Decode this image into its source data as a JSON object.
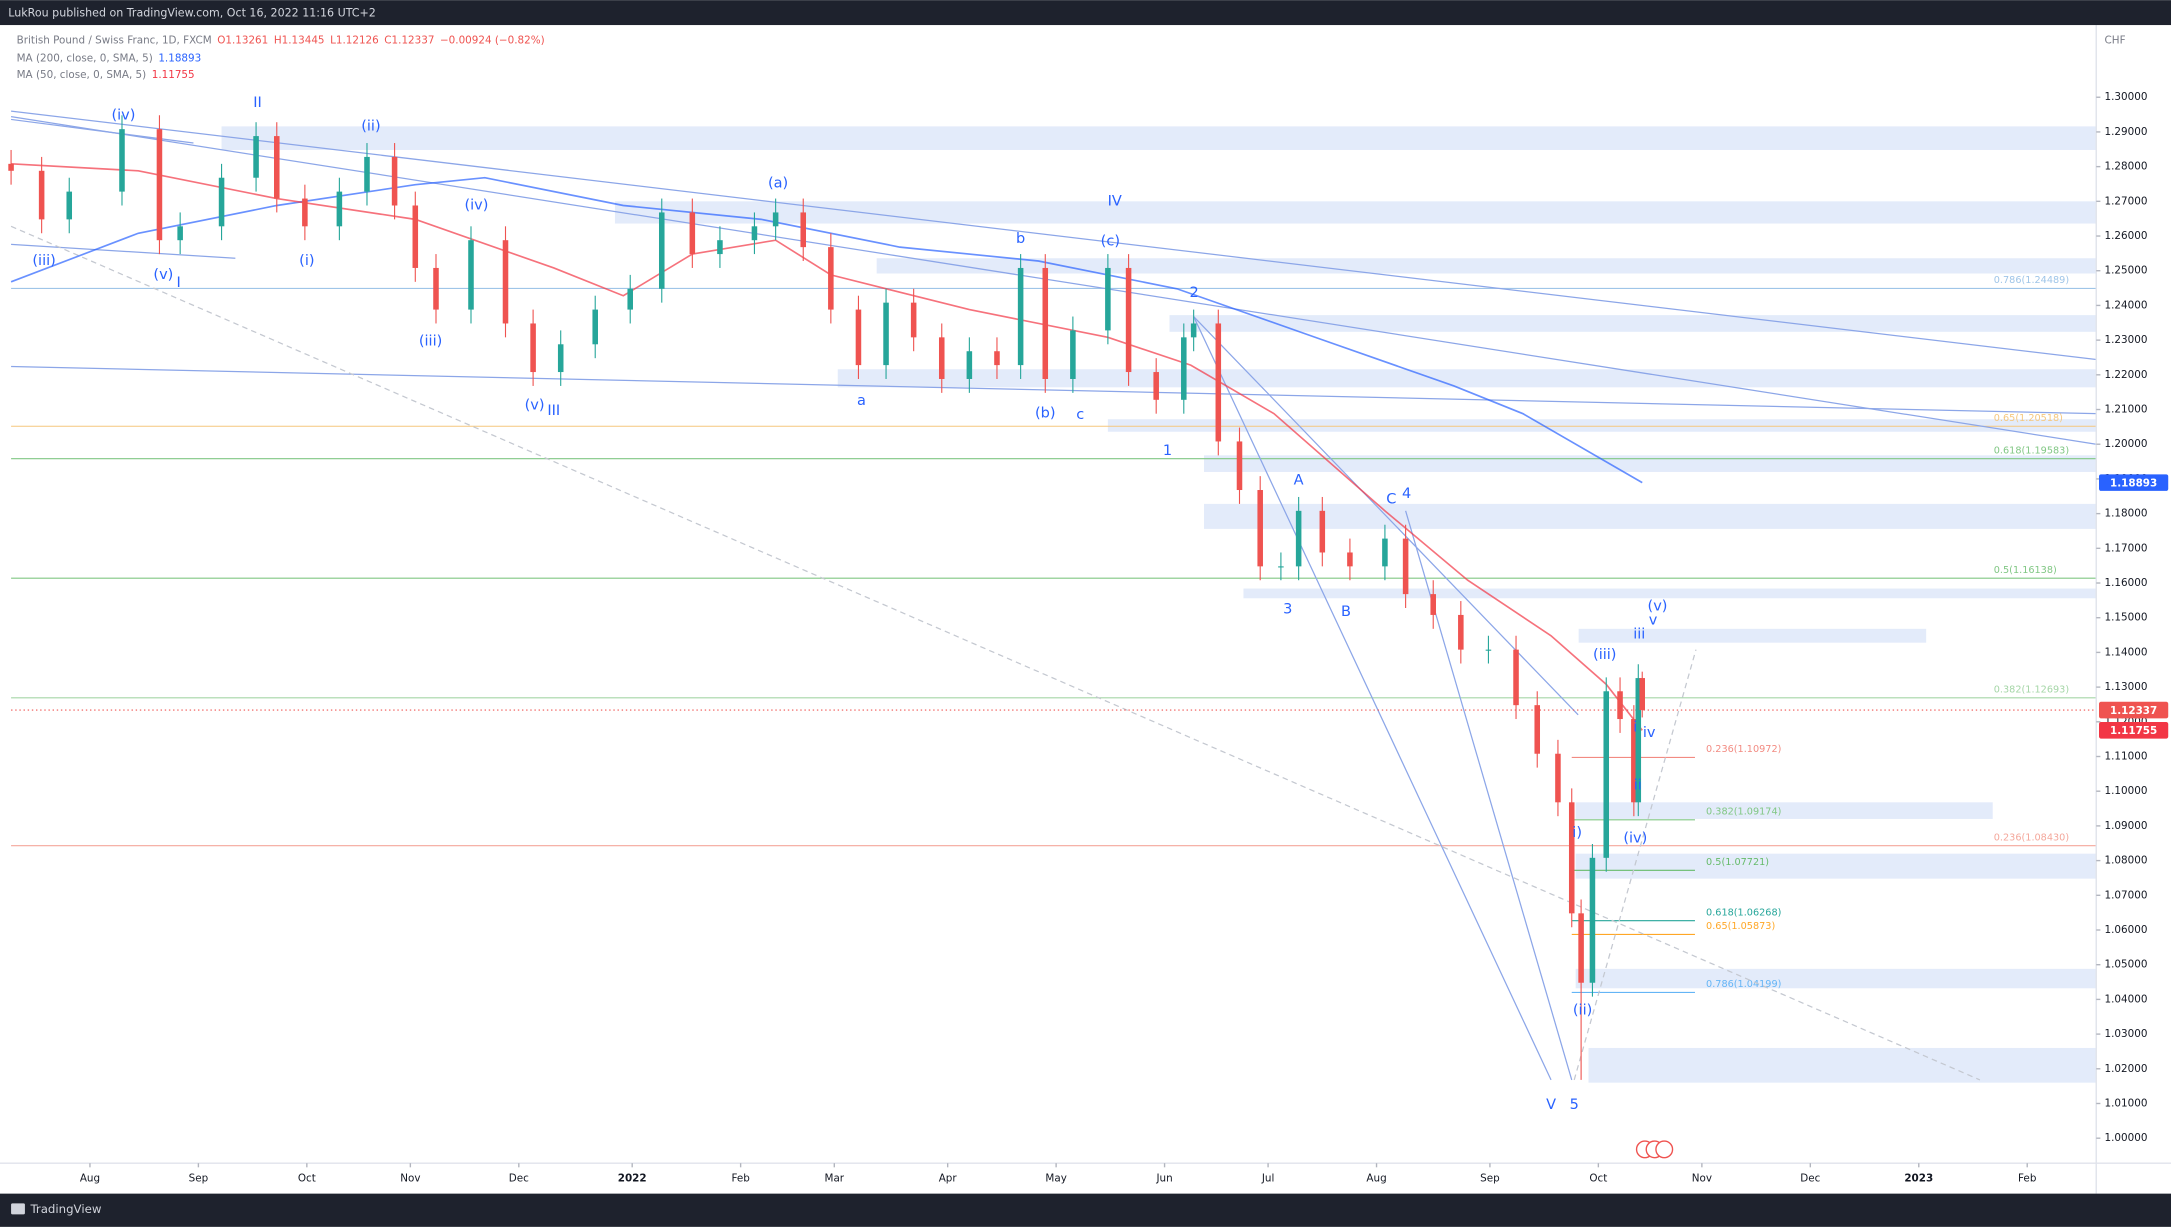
{
  "header": {
    "published": "LukRou published on TradingView.com, Oct 16, 2022 11:16 UTC+2"
  },
  "footer": {
    "brand": "TradingView"
  },
  "chart_data": {
    "type": "candlestick",
    "title": "British Pound / Swiss Franc, 1D, FXCM",
    "ohlc_legend": [
      "O1.13261",
      "H1.13445",
      "L1.12126",
      "C1.12337",
      "−0.00924 (−0.82%)"
    ],
    "currency": "CHF",
    "up_color": "#26a69a",
    "down_color": "#ef5350",
    "x": [
      0,
      6.2,
      11.8,
      22.5,
      30.1,
      34.3,
      42.7,
      49.7,
      53.9,
      59.6,
      66.6,
      72.2,
      77.8,
      82.0,
      86.2,
      93.3,
      100.3,
      105.9,
      111.5,
      118.5,
      125.6,
      132.0,
      138.2,
      143.8,
      150.8,
      155.1,
      160.7,
      166.3,
      171.9,
      177.5,
      183.1,
      188.8,
      194.4,
      200.0,
      204.8,
      209.8,
      215.4,
      222.5,
      226.7,
      232.3,
      237.9,
      239.9,
      244.9,
      249.2,
      253.4,
      257.6,
      261.2,
      266.0,
      271.6,
      278.7,
      282.9,
      288.5,
      294.1,
      299.7,
      305.3,
      309.6,
      313.8,
      316.6,
      318.5,
      320.8,
      323.6,
      326.4,
      329.2,
      330.1,
      330.9
    ],
    "open": [
      1.2808,
      1.2788,
      1.2648,
      1.2728,
      1.2908,
      1.2588,
      1.2628,
      1.2768,
      1.2888,
      1.2708,
      1.2628,
      1.2728,
      1.2828,
      1.2688,
      1.2508,
      1.2388,
      1.2588,
      1.2348,
      1.2208,
      1.2288,
      1.2388,
      1.2448,
      1.2668,
      1.2548,
      1.2588,
      1.2628,
      1.2668,
      1.2568,
      1.2388,
      1.2228,
      1.2408,
      1.2308,
      1.2188,
      1.2268,
      1.2228,
      1.2508,
      1.2188,
      1.2328,
      1.2508,
      1.2208,
      1.2128,
      1.2308,
      1.2348,
      1.2008,
      1.1868,
      1.1648,
      1.1648,
      1.1808,
      1.1688,
      1.1648,
      1.1728,
      1.1568,
      1.1508,
      1.1408,
      1.1408,
      1.1248,
      1.1108,
      1.0968,
      1.0648,
      1.0448,
      1.0808,
      1.1288,
      1.1208,
      1.0968,
      1.13261
    ],
    "high": [
      1.2848,
      1.2828,
      1.2768,
      1.2948,
      1.2948,
      1.2668,
      1.2808,
      1.2928,
      1.2928,
      1.2748,
      1.2768,
      1.2868,
      1.2868,
      1.2728,
      1.2548,
      1.2628,
      1.2628,
      1.2388,
      1.2328,
      1.2428,
      1.2488,
      1.2708,
      1.2708,
      1.2628,
      1.2668,
      1.2708,
      1.2708,
      1.2608,
      1.2428,
      1.2448,
      1.2448,
      1.2348,
      1.2308,
      1.2308,
      1.2548,
      1.2548,
      1.2368,
      1.2548,
      1.2548,
      1.2248,
      1.2348,
      1.2388,
      1.2388,
      1.2048,
      1.1908,
      1.1688,
      1.1848,
      1.1848,
      1.1728,
      1.1768,
      1.1768,
      1.1608,
      1.1548,
      1.1448,
      1.1448,
      1.1288,
      1.1148,
      1.1008,
      1.0688,
      1.0848,
      1.1328,
      1.1328,
      1.1248,
      1.1366,
      1.13445
    ],
    "low": [
      1.2748,
      1.2608,
      1.2608,
      1.2688,
      1.2548,
      1.2548,
      1.2588,
      1.2728,
      1.2668,
      1.2588,
      1.2588,
      1.2688,
      1.2648,
      1.2468,
      1.2348,
      1.2348,
      1.2308,
      1.2168,
      1.2168,
      1.2248,
      1.2348,
      1.2408,
      1.2508,
      1.2508,
      1.2548,
      1.2588,
      1.2528,
      1.2348,
      1.2188,
      1.2188,
      1.2268,
      1.2148,
      1.2148,
      1.2188,
      1.2188,
      1.2148,
      1.2148,
      1.2288,
      1.2168,
      1.2088,
      1.2088,
      1.2268,
      1.1968,
      1.1828,
      1.1608,
      1.1608,
      1.1608,
      1.1648,
      1.1608,
      1.1608,
      1.1528,
      1.1468,
      1.1368,
      1.1368,
      1.1208,
      1.1068,
      1.0928,
      1.0608,
      1.0168,
      1.0408,
      1.0768,
      1.1168,
      1.0928,
      1.0928,
      1.12126
    ],
    "close": [
      1.2788,
      1.2648,
      1.2728,
      1.2908,
      1.2588,
      1.2628,
      1.2768,
      1.2888,
      1.2708,
      1.2628,
      1.2728,
      1.2828,
      1.2688,
      1.2508,
      1.2388,
      1.2588,
      1.2348,
      1.2208,
      1.2288,
      1.2388,
      1.2448,
      1.2668,
      1.2548,
      1.2588,
      1.2628,
      1.2668,
      1.2568,
      1.2388,
      1.2228,
      1.2408,
      1.2308,
      1.2188,
      1.2268,
      1.2228,
      1.2508,
      1.2188,
      1.2328,
      1.2508,
      1.2208,
      1.2128,
      1.2308,
      1.2348,
      1.2008,
      1.1868,
      1.1648,
      1.1648,
      1.1808,
      1.1688,
      1.1648,
      1.1728,
      1.1568,
      1.1508,
      1.1408,
      1.1408,
      1.1248,
      1.1108,
      1.0968,
      1.0648,
      1.0448,
      1.0808,
      1.1288,
      1.1208,
      1.0968,
      1.1326,
      1.12337
    ],
    "series": [
      {
        "name": "MA (200, close, 0, SMA, 5)",
        "color": "#2962ff",
        "last_value": 1.18893,
        "x": [
          0,
          25.8,
          53.9,
          82.0,
          96.1,
          124.2,
          152.2,
          180.3,
          208.4,
          236.5,
          264.6,
          292.7,
          306.7,
          330.9
        ],
        "values": [
          1.2468,
          1.2608,
          1.2688,
          1.2748,
          1.2768,
          1.2688,
          1.2648,
          1.2568,
          1.2528,
          1.2448,
          1.2308,
          1.2168,
          1.2088,
          1.18893
        ]
      },
      {
        "name": "MA (50, close, 0, SMA, 5)",
        "color": "#f23645",
        "last_value": 1.11755,
        "x": [
          0,
          25.8,
          53.9,
          82.0,
          110.1,
          124.2,
          138.2,
          155.1,
          166.3,
          194.4,
          222.5,
          239.3,
          256.2,
          278.7,
          295.5,
          312.4,
          323.6,
          330.9
        ],
        "values": [
          1.2808,
          1.2788,
          1.2708,
          1.2648,
          1.2508,
          1.2428,
          1.2548,
          1.2588,
          1.2488,
          1.2388,
          1.2308,
          1.2228,
          1.2088,
          1.1808,
          1.1608,
          1.1448,
          1.1308,
          1.11755
        ]
      }
    ],
    "xlim": [
      0,
      423
    ],
    "ylim": [
      0.9928,
      1.3208
    ],
    "xticks": [
      {
        "value": 16,
        "label": "Aug"
      },
      {
        "value": 38,
        "label": "Sep"
      },
      {
        "value": 60,
        "label": "Oct"
      },
      {
        "value": 81,
        "label": "Nov"
      },
      {
        "value": 103,
        "label": "Dec"
      },
      {
        "value": 126,
        "label": "2022"
      },
      {
        "value": 148,
        "label": "Feb"
      },
      {
        "value": 167,
        "label": "Mar"
      },
      {
        "value": 190,
        "label": "Apr"
      },
      {
        "value": 212,
        "label": "May"
      },
      {
        "value": 234,
        "label": "Jun"
      },
      {
        "value": 255,
        "label": "Jul"
      },
      {
        "value": 277,
        "label": "Aug"
      },
      {
        "value": 300,
        "label": "Sep"
      },
      {
        "value": 322,
        "label": "Oct"
      },
      {
        "value": 343,
        "label": "Nov"
      },
      {
        "value": 365,
        "label": "Dec"
      },
      {
        "value": 387,
        "label": "2023"
      },
      {
        "value": 409,
        "label": "Feb"
      }
    ],
    "yticks": [
      {
        "value": 1.0,
        "label": "1.00000"
      },
      {
        "value": 1.01,
        "label": "1.01000"
      },
      {
        "value": 1.02,
        "label": "1.02000"
      },
      {
        "value": 1.03,
        "label": "1.03000"
      },
      {
        "value": 1.04,
        "label": "1.04000"
      },
      {
        "value": 1.05,
        "label": "1.05000"
      },
      {
        "value": 1.06,
        "label": "1.06000"
      },
      {
        "value": 1.07,
        "label": "1.07000"
      },
      {
        "value": 1.08,
        "label": "1.08000"
      },
      {
        "value": 1.09,
        "label": "1.09000"
      },
      {
        "value": 1.1,
        "label": "1.10000"
      },
      {
        "value": 1.11,
        "label": "1.11000"
      },
      {
        "value": 1.12,
        "label": "1.12000"
      },
      {
        "value": 1.13,
        "label": "1.13000"
      },
      {
        "value": 1.14,
        "label": "1.14000"
      },
      {
        "value": 1.15,
        "label": "1.15000"
      },
      {
        "value": 1.16,
        "label": "1.16000"
      },
      {
        "value": 1.17,
        "label": "1.17000"
      },
      {
        "value": 1.18,
        "label": "1.18000"
      },
      {
        "value": 1.19,
        "label": "1.19000"
      },
      {
        "value": 1.2,
        "label": "1.20000"
      },
      {
        "value": 1.21,
        "label": "1.21000"
      },
      {
        "value": 1.22,
        "label": "1.22000"
      },
      {
        "value": 1.23,
        "label": "1.23000"
      },
      {
        "value": 1.24,
        "label": "1.24000"
      },
      {
        "value": 1.25,
        "label": "1.25000"
      },
      {
        "value": 1.26,
        "label": "1.26000"
      },
      {
        "value": 1.27,
        "label": "1.27000"
      },
      {
        "value": 1.28,
        "label": "1.28000"
      },
      {
        "value": 1.29,
        "label": "1.29000"
      },
      {
        "value": 1.3,
        "label": "1.30000"
      }
    ],
    "fib_levels": [
      {
        "label": "0.786(1.24489)",
        "value": 1.24489,
        "color": "#9fc5e8",
        "x0": 0,
        "x1": 423
      },
      {
        "label": "0.65(1.20518)",
        "value": 1.20518,
        "color": "#f5c77e",
        "x0": 0,
        "x1": 423
      },
      {
        "label": "0.618(1.19583)",
        "value": 1.19583,
        "color": "#81c784",
        "x0": 0,
        "x1": 423
      },
      {
        "label": "0.5(1.16138)",
        "value": 1.16138,
        "color": "#81c784",
        "x0": 0,
        "x1": 423
      },
      {
        "label": "0.382(1.12693)",
        "value": 1.12693,
        "color": "#a5d6a7",
        "x0": 0,
        "x1": 423
      },
      {
        "label": "0.236(1.08430)",
        "value": 1.0843,
        "color": "#f4a79b",
        "x0": 0,
        "x1": 423
      },
      {
        "label": "0.236(1.10972)",
        "value": 1.10972,
        "color": "#f28b82",
        "x0": 316.6,
        "x1": 341.6
      },
      {
        "label": "0.382(1.09174)",
        "value": 1.09174,
        "color": "#81c784",
        "x0": 316.6,
        "x1": 341.6
      },
      {
        "label": "0.5(1.07721)",
        "value": 1.07721,
        "color": "#66bb6a",
        "x0": 316.6,
        "x1": 341.6
      },
      {
        "label": "0.618(1.06268)",
        "value": 1.06268,
        "color": "#26a69a",
        "x0": 316.6,
        "x1": 341.6
      },
      {
        "label": "0.65(1.05873)",
        "value": 1.05873,
        "color": "#ffa726",
        "x0": 316.6,
        "x1": 341.6
      },
      {
        "label": "0.786(1.04199)",
        "value": 1.04199,
        "color": "#64b5f6",
        "x0": 316.6,
        "x1": 341.6
      }
    ],
    "zones": {
      "color": "#e3ebfa",
      "items": [
        {
          "x0": 42.7,
          "x1": 423,
          "low": 1.2848,
          "high": 1.2916
        },
        {
          "x0": 122.5,
          "x1": 423,
          "low": 1.2636,
          "high": 1.27
        },
        {
          "x0": 175.6,
          "x1": 423,
          "low": 1.2492,
          "high": 1.2536
        },
        {
          "x0": 235,
          "x1": 423,
          "low": 1.2324,
          "high": 1.2372
        },
        {
          "x0": 167.7,
          "x1": 423,
          "low": 1.2164,
          "high": 1.2216
        },
        {
          "x0": 222.5,
          "x1": 423,
          "low": 1.2036,
          "high": 1.2072
        },
        {
          "x0": 242,
          "x1": 423,
          "low": 1.192,
          "high": 1.1968
        },
        {
          "x0": 242,
          "x1": 423,
          "low": 1.1756,
          "high": 1.1828
        },
        {
          "x0": 250,
          "x1": 423,
          "low": 1.1556,
          "high": 1.1584
        },
        {
          "x0": 318,
          "x1": 388.5,
          "low": 1.1428,
          "high": 1.1468
        },
        {
          "x0": 317.4,
          "x1": 402,
          "low": 1.092,
          "high": 1.0968
        },
        {
          "x0": 317.4,
          "x1": 423,
          "low": 1.0748,
          "high": 1.082
        },
        {
          "x0": 317.4,
          "x1": 423,
          "low": 1.0432,
          "high": 1.0488
        },
        {
          "x0": 320,
          "x1": 423,
          "low": 1.016,
          "high": 1.026
        }
      ]
    },
    "trendlines": {
      "color": "#8ca6e8",
      "dash_color": "#c4c8d0",
      "items": [
        {
          "x": [
            0,
            423
          ],
          "y": [
            1.296,
            1.2244
          ],
          "dashed": false
        },
        {
          "x": [
            0,
            423
          ],
          "y": [
            1.2944,
            1.2
          ],
          "dashed": false
        },
        {
          "x": [
            0,
            423
          ],
          "y": [
            1.2224,
            1.2088
          ],
          "dashed": false
        },
        {
          "x": [
            0,
            37
          ],
          "y": [
            1.2936,
            1.2868
          ],
          "dashed": false
        },
        {
          "x": [
            0,
            45.5
          ],
          "y": [
            1.2576,
            1.2536
          ],
          "dashed": false
        },
        {
          "x": [
            239.9,
            312.4
          ],
          "y": [
            1.2368,
            1.0168
          ],
          "dashed": false
        },
        {
          "x": [
            239.9,
            317.9
          ],
          "y": [
            1.2368,
            1.122
          ],
          "dashed": false
        },
        {
          "x": [
            282.9,
            316.6
          ],
          "y": [
            1.1808,
            1.0168
          ],
          "dashed": false
        },
        {
          "x": [
            0,
            399.4
          ],
          "y": [
            1.2628,
            1.0168
          ],
          "dashed": true
        },
        {
          "x": [
            317.1,
            341.8
          ],
          "y": [
            1.0168,
            1.1408
          ],
          "dashed": true
        }
      ]
    },
    "annotations": [
      {
        "text": "(iv)",
        "x": 22.8,
        "y": 1.2948
      },
      {
        "text": "II",
        "x": 50,
        "y": 1.2984
      },
      {
        "text": "(ii)",
        "x": 73,
        "y": 1.2916
      },
      {
        "text": "(a)",
        "x": 155.6,
        "y": 1.2752
      },
      {
        "text": "IV",
        "x": 223.9,
        "y": 1.27
      },
      {
        "text": "(iv)",
        "x": 94.4,
        "y": 1.2688
      },
      {
        "text": "(iii)",
        "x": 6.7,
        "y": 1.2528
      },
      {
        "text": "(v)",
        "x": 30.9,
        "y": 1.2488
      },
      {
        "text": "I",
        "x": 34,
        "y": 1.2464
      },
      {
        "text": "(i)",
        "x": 60,
        "y": 1.2528
      },
      {
        "text": "b",
        "x": 204.8,
        "y": 1.2592
      },
      {
        "text": "(c)",
        "x": 223,
        "y": 1.2584
      },
      {
        "text": "2",
        "x": 240,
        "y": 1.2436
      },
      {
        "text": "(iii)",
        "x": 85.1,
        "y": 1.2296
      },
      {
        "text": "(v)",
        "x": 106.2,
        "y": 1.2112
      },
      {
        "text": "III",
        "x": 110.1,
        "y": 1.2096
      },
      {
        "text": "a",
        "x": 172.5,
        "y": 1.2124
      },
      {
        "text": "(b)",
        "x": 209.8,
        "y": 1.2088
      },
      {
        "text": "c",
        "x": 216.9,
        "y": 1.2084
      },
      {
        "text": "1",
        "x": 234.6,
        "y": 1.198
      },
      {
        "text": "A",
        "x": 261.2,
        "y": 1.1896
      },
      {
        "text": "C",
        "x": 280,
        "y": 1.184
      },
      {
        "text": "4",
        "x": 283.1,
        "y": 1.1856
      },
      {
        "text": "3",
        "x": 259,
        "y": 1.1524
      },
      {
        "text": "B",
        "x": 270.8,
        "y": 1.1516
      },
      {
        "text": "(v)",
        "x": 334,
        "y": 1.1532
      },
      {
        "text": "v",
        "x": 333.1,
        "y": 1.1492
      },
      {
        "text": "iii",
        "x": 330.3,
        "y": 1.1452
      },
      {
        "text": "(iii)",
        "x": 323.3,
        "y": 1.1392
      },
      {
        "text": "iv",
        "x": 332.3,
        "y": 1.1168
      },
      {
        "text": "i",
        "x": 329.5,
        "y": 1.1184
      },
      {
        "text": "ii",
        "x": 330,
        "y": 1.1016
      },
      {
        "text": "i)",
        "x": 317.7,
        "y": 1.088
      },
      {
        "text": "(iv)",
        "x": 329.5,
        "y": 1.0864
      },
      {
        "text": "(ii)",
        "x": 318.8,
        "y": 1.0368
      },
      {
        "text": "V",
        "x": 312.4,
        "y": 1.0096
      },
      {
        "text": "5",
        "x": 317.1,
        "y": 1.0096
      }
    ]
  }
}
